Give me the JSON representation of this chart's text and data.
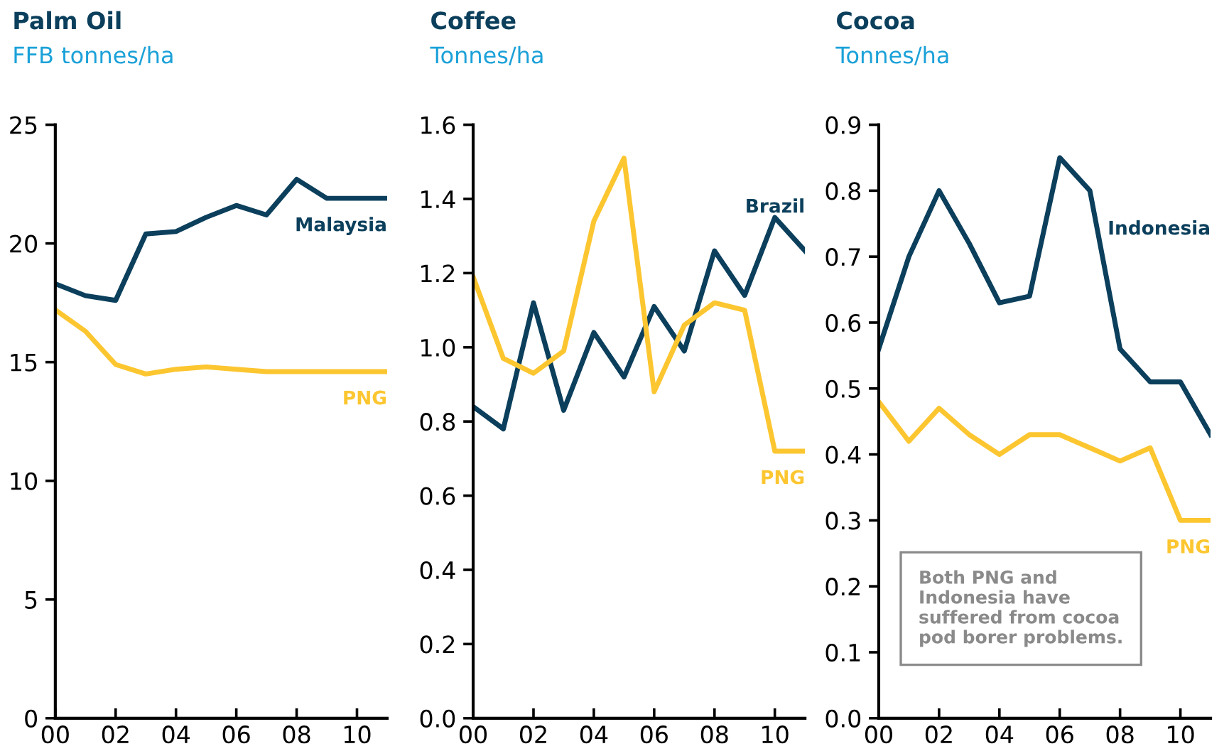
{
  "chart_data": [
    {
      "type": "line",
      "title": "Palm Oil",
      "subtitle": "FFB tonnes/ha",
      "x": [
        2000,
        2001,
        2002,
        2003,
        2004,
        2005,
        2006,
        2007,
        2008,
        2009,
        2010,
        2011
      ],
      "series": [
        {
          "name": "Malaysia",
          "color": "#0b3f5c",
          "values": [
            18.3,
            17.8,
            17.6,
            20.4,
            20.5,
            21.1,
            21.6,
            21.2,
            22.7,
            21.9,
            21.9,
            21.9
          ]
        },
        {
          "name": "PNG",
          "color": "#fcc630",
          "values": [
            17.2,
            16.3,
            14.9,
            14.5,
            14.7,
            14.8,
            14.7,
            14.6,
            14.6,
            14.6,
            14.6,
            14.6
          ]
        }
      ],
      "xlim": [
        2000,
        2011
      ],
      "xticks": [
        {
          "value": 2000,
          "label": "00"
        },
        {
          "value": 2002,
          "label": "02"
        },
        {
          "value": 2004,
          "label": "04"
        },
        {
          "value": 2006,
          "label": "06"
        },
        {
          "value": 2008,
          "label": "08"
        },
        {
          "value": 2010,
          "label": "10"
        }
      ],
      "ylim": [
        0,
        25
      ],
      "yticks": [
        0,
        5,
        10,
        15,
        20,
        25
      ],
      "grid": false,
      "legend": false
    },
    {
      "type": "line",
      "title": "Coffee",
      "subtitle": "Tonnes/ha",
      "x": [
        2000,
        2001,
        2002,
        2003,
        2004,
        2005,
        2006,
        2007,
        2008,
        2009,
        2010,
        2011
      ],
      "series": [
        {
          "name": "Brazil",
          "color": "#0b3f5c",
          "values": [
            0.84,
            0.78,
            1.12,
            0.83,
            1.04,
            0.92,
            1.11,
            0.99,
            1.26,
            1.14,
            1.35,
            1.26
          ]
        },
        {
          "name": "PNG",
          "color": "#fcc630",
          "values": [
            1.19,
            0.97,
            0.93,
            0.99,
            1.34,
            1.51,
            0.88,
            1.06,
            1.12,
            1.1,
            0.72,
            0.72
          ]
        }
      ],
      "xlim": [
        2000,
        2011
      ],
      "xticks": [
        {
          "value": 2000,
          "label": "00"
        },
        {
          "value": 2002,
          "label": "02"
        },
        {
          "value": 2004,
          "label": "04"
        },
        {
          "value": 2006,
          "label": "06"
        },
        {
          "value": 2008,
          "label": "08"
        },
        {
          "value": 2010,
          "label": "10"
        }
      ],
      "ylim": [
        0,
        1.6
      ],
      "yticks": [
        {
          "value": 0,
          "label": "0.0"
        },
        {
          "value": 0.2,
          "label": "0.2"
        },
        {
          "value": 0.4,
          "label": "0.4"
        },
        {
          "value": 0.6,
          "label": "0.6"
        },
        {
          "value": 0.8,
          "label": "0.8"
        },
        {
          "value": 1.0,
          "label": "1.0"
        },
        {
          "value": 1.2,
          "label": "1.2"
        },
        {
          "value": 1.4,
          "label": "1.4"
        },
        {
          "value": 1.6,
          "label": "1.6"
        }
      ],
      "grid": false,
      "legend": false
    },
    {
      "type": "line",
      "title": "Cocoa",
      "subtitle": "Tonnes/ha",
      "x": [
        2000,
        2001,
        2002,
        2003,
        2004,
        2005,
        2006,
        2007,
        2008,
        2009,
        2010,
        2011
      ],
      "series": [
        {
          "name": "Indonesia",
          "color": "#0b3f5c",
          "values": [
            0.56,
            0.7,
            0.8,
            0.72,
            0.63,
            0.64,
            0.85,
            0.8,
            0.56,
            0.51,
            0.51,
            0.43
          ]
        },
        {
          "name": "PNG",
          "color": "#fcc630",
          "values": [
            0.48,
            0.42,
            0.47,
            0.43,
            0.4,
            0.43,
            0.43,
            0.41,
            0.39,
            0.41,
            0.3,
            0.3
          ]
        }
      ],
      "xlim": [
        2000,
        2011
      ],
      "xticks": [
        {
          "value": 2000,
          "label": "00"
        },
        {
          "value": 2002,
          "label": "02"
        },
        {
          "value": 2004,
          "label": "04"
        },
        {
          "value": 2006,
          "label": "06"
        },
        {
          "value": 2008,
          "label": "08"
        },
        {
          "value": 2010,
          "label": "10"
        }
      ],
      "ylim": [
        0,
        0.9
      ],
      "yticks": [
        {
          "value": 0,
          "label": "0.0"
        },
        {
          "value": 0.1,
          "label": "0.1"
        },
        {
          "value": 0.2,
          "label": "0.2"
        },
        {
          "value": 0.3,
          "label": "0.3"
        },
        {
          "value": 0.4,
          "label": "0.4"
        },
        {
          "value": 0.5,
          "label": "0.5"
        },
        {
          "value": 0.6,
          "label": "0.6"
        },
        {
          "value": 0.7,
          "label": "0.7"
        },
        {
          "value": 0.8,
          "label": "0.8"
        },
        {
          "value": 0.9,
          "label": "0.9"
        }
      ],
      "grid": false,
      "legend": false,
      "annotations": [
        "Both PNG and\nIndonesia have\nsuffered from cocoa\npod borer problems."
      ]
    }
  ]
}
